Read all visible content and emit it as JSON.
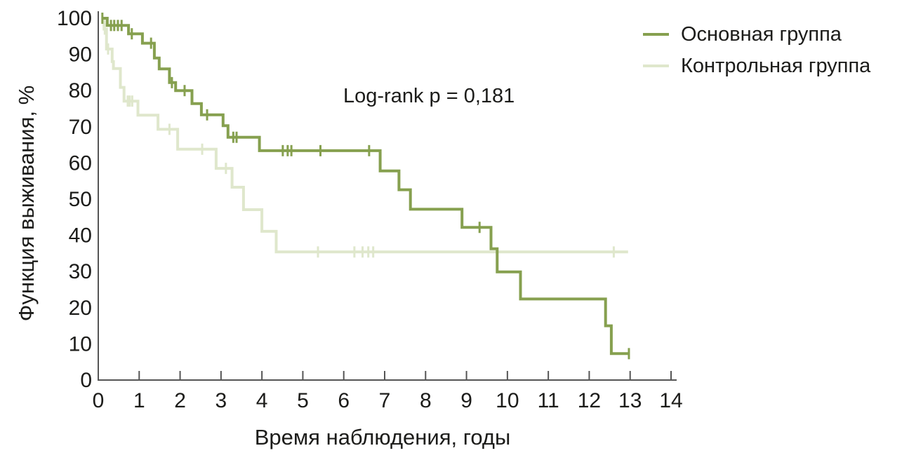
{
  "chart_data": {
    "type": "line",
    "variant": "kaplan_meier_step",
    "title": "",
    "xlabel": "Время наблюдения, годы",
    "ylabel": "Функция выживания, %",
    "annotation": "Log-rank p = 0,181",
    "xlim": [
      0,
      14
    ],
    "ylim": [
      0,
      100
    ],
    "x_ticks": [
      0,
      1,
      2,
      3,
      4,
      5,
      6,
      7,
      8,
      9,
      10,
      11,
      12,
      13,
      14
    ],
    "y_ticks": [
      0,
      10,
      20,
      30,
      40,
      50,
      60,
      70,
      80,
      90,
      100
    ],
    "grid": false,
    "legend_position": "top-right",
    "axis_color": "#555555",
    "text_color": "#1c1c1a",
    "series": [
      {
        "name": "Основная группа",
        "color": "#86A04F",
        "line_width": 4,
        "steps": [
          [
            0.08,
            100
          ],
          [
            0.22,
            98.0
          ],
          [
            0.74,
            95.7
          ],
          [
            1.08,
            93.1
          ],
          [
            1.37,
            89.0
          ],
          [
            1.49,
            86.0
          ],
          [
            1.74,
            82.2
          ],
          [
            1.89,
            80.0
          ],
          [
            2.29,
            76.4
          ],
          [
            2.52,
            73.3
          ],
          [
            3.05,
            70.3
          ],
          [
            3.17,
            67.1
          ],
          [
            3.94,
            63.4
          ],
          [
            6.89,
            57.8
          ],
          [
            7.35,
            52.6
          ],
          [
            7.63,
            47.2
          ],
          [
            8.89,
            42.2
          ],
          [
            9.6,
            36.3
          ],
          [
            9.75,
            29.9
          ],
          [
            10.32,
            22.4
          ],
          [
            12.4,
            15.0
          ],
          [
            12.54,
            7.3
          ]
        ],
        "end_time": 12.97,
        "censor_marks": [
          [
            0.1,
            100
          ],
          [
            0.31,
            98.0
          ],
          [
            0.39,
            98.0
          ],
          [
            0.48,
            98.0
          ],
          [
            0.57,
            98.0
          ],
          [
            0.82,
            95.7
          ],
          [
            1.29,
            93.1
          ],
          [
            1.8,
            82.2
          ],
          [
            2.11,
            80.0
          ],
          [
            2.66,
            73.3
          ],
          [
            3.3,
            67.1
          ],
          [
            3.38,
            67.1
          ],
          [
            4.51,
            63.4
          ],
          [
            4.63,
            63.4
          ],
          [
            4.72,
            63.4
          ],
          [
            5.43,
            63.4
          ],
          [
            6.62,
            63.4
          ],
          [
            9.32,
            42.2
          ],
          [
            12.97,
            7.3
          ]
        ]
      },
      {
        "name": "Контрольная группа",
        "color": "#DFE7CC",
        "line_width": 4,
        "steps": [
          [
            0.12,
            100
          ],
          [
            0.14,
            97.0
          ],
          [
            0.2,
            91.5
          ],
          [
            0.34,
            88.0
          ],
          [
            0.37,
            86.1
          ],
          [
            0.54,
            80.9
          ],
          [
            0.63,
            77.1
          ],
          [
            0.97,
            73.2
          ],
          [
            1.46,
            69.3
          ],
          [
            1.94,
            63.8
          ],
          [
            2.88,
            58.5
          ],
          [
            3.27,
            53.3
          ],
          [
            3.55,
            47.1
          ],
          [
            4.0,
            41.1
          ],
          [
            4.35,
            35.4
          ]
        ],
        "end_time": 12.95,
        "censor_marks": [
          [
            0.16,
            97.0
          ],
          [
            0.24,
            91.5
          ],
          [
            0.72,
            77.1
          ],
          [
            0.77,
            77.1
          ],
          [
            0.83,
            77.1
          ],
          [
            1.74,
            69.3
          ],
          [
            2.54,
            63.8
          ],
          [
            3.12,
            58.5
          ],
          [
            5.37,
            35.4
          ],
          [
            6.26,
            35.4
          ],
          [
            6.46,
            35.4
          ],
          [
            6.6,
            35.4
          ],
          [
            6.72,
            35.4
          ],
          [
            12.6,
            35.4
          ]
        ]
      }
    ]
  }
}
